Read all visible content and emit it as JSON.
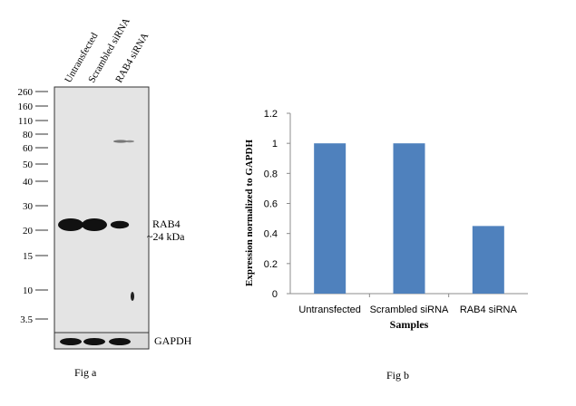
{
  "figure_a": {
    "caption": "Fig a",
    "lane_labels": [
      "Untransfected",
      "Scrambled siRNA",
      "RAB4 siRNA"
    ],
    "mw_markers": [
      "260",
      "160",
      "110",
      "80",
      "60",
      "50",
      "40",
      "30",
      "20",
      "15",
      "10",
      "3.5"
    ],
    "target_label": "RAB4",
    "target_size": "~24 kDa",
    "loading_control": "GAPDH",
    "band_intensity": [
      1.0,
      1.0,
      0.45
    ],
    "colors": {
      "membrane": "#e4e4e4",
      "band": "#111111"
    }
  },
  "figure_b": {
    "caption": "Fig b"
  },
  "chart_data": {
    "type": "bar",
    "categories": [
      "Untransfected",
      "Scrambled siRNA",
      "RAB4 siRNA"
    ],
    "values": [
      1.0,
      1.0,
      0.45
    ],
    "title": "",
    "xlabel": "Samples",
    "ylabel": "Expression normalized to GAPDH",
    "ylim": [
      0,
      1.2
    ],
    "yticks": [
      "0",
      "0.2",
      "0.4",
      "0.6",
      "0.8",
      "1",
      "1.2"
    ],
    "grid": false,
    "legend": "none",
    "bar_color": "#4f81bd"
  }
}
